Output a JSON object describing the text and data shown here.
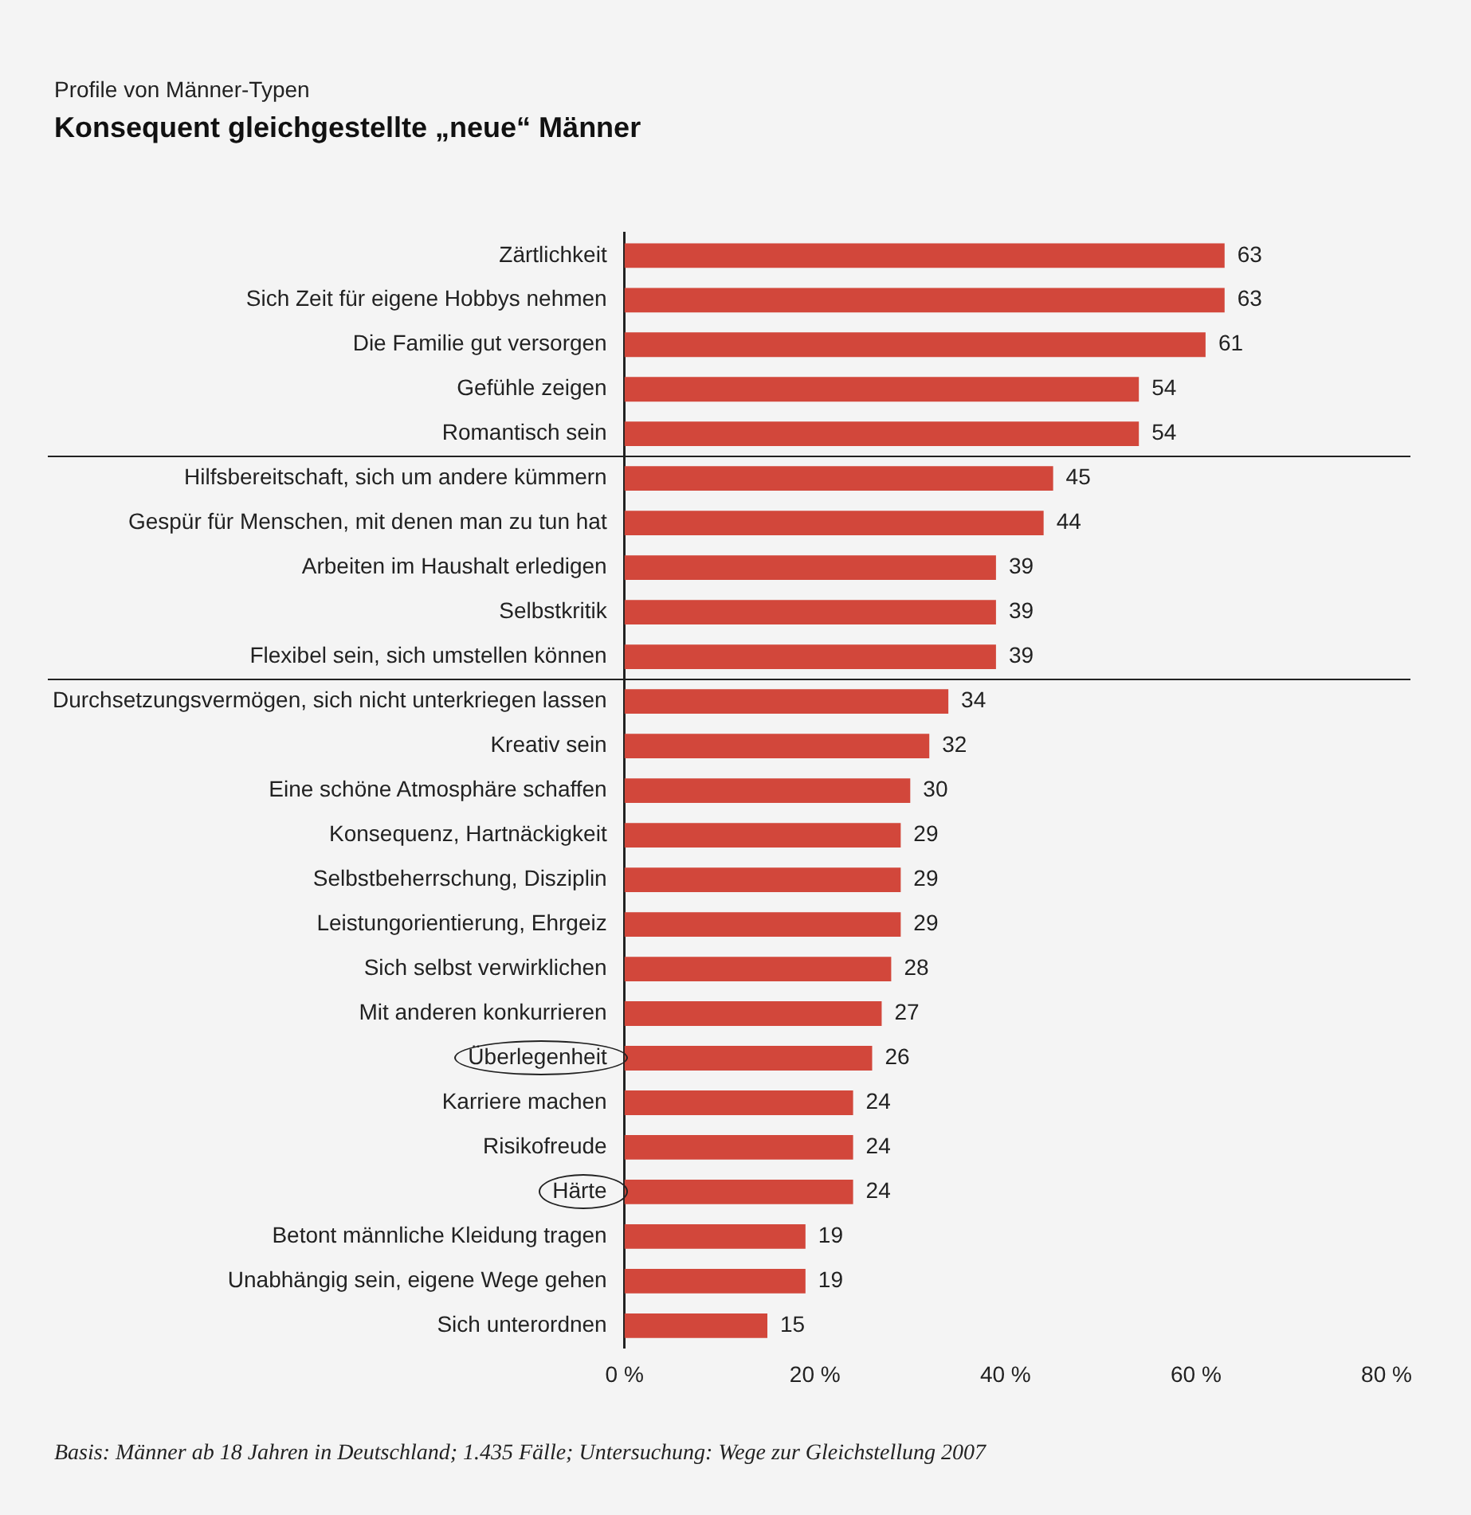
{
  "chart_data": {
    "type": "bar",
    "orientation": "horizontal",
    "subtitle": "Profile von Männer-Typen",
    "title": "Konsequent gleichgestellte „neue“ Männer",
    "categories": [
      "Zärtlichkeit",
      "Sich Zeit für eigene Hobbys nehmen",
      "Die Familie gut versorgen",
      "Gefühle zeigen",
      "Romantisch sein",
      "Hilfsbereitschaft, sich um andere kümmern",
      "Gespür für Menschen, mit denen man zu tun hat",
      "Arbeiten im Haushalt erledigen",
      "Selbstkritik",
      "Flexibel sein, sich umstellen können",
      "Durchsetzungsvermögen, sich nicht unterkriegen lassen",
      "Kreativ sein",
      "Eine schöne Atmosphäre schaffen",
      "Konsequenz, Hartnäckigkeit",
      "Selbstbeherrschung, Disziplin",
      "Leistungorientierung, Ehrgeiz",
      "Sich selbst verwirklichen",
      "Mit anderen konkurrieren",
      "Überlegenheit",
      "Karriere machen",
      "Risikofreude",
      "Härte",
      "Betont männliche Kleidung tragen",
      "Unabhängig sein, eigene Wege gehen",
      "Sich unterordnen"
    ],
    "values": [
      63,
      63,
      61,
      54,
      54,
      45,
      44,
      39,
      39,
      39,
      34,
      32,
      30,
      29,
      29,
      29,
      28,
      27,
      26,
      24,
      24,
      24,
      19,
      19,
      15
    ],
    "color": "#d2473b",
    "data_labels": true,
    "grid": false,
    "xlim": [
      0,
      80
    ],
    "xticks": [
      {
        "value": 0,
        "label": "0 %"
      },
      {
        "value": 20,
        "label": "20 %"
      },
      {
        "value": 40,
        "label": "40 %"
      },
      {
        "value": 60,
        "label": "60 %"
      },
      {
        "value": 80,
        "label": "80 %"
      }
    ],
    "annotations": [
      "Basis: Männer ab 18 Jahren in Deutschland; 1.435 Fälle; Untersuchung: Wege zur Gleichstellung 2007"
    ]
  }
}
